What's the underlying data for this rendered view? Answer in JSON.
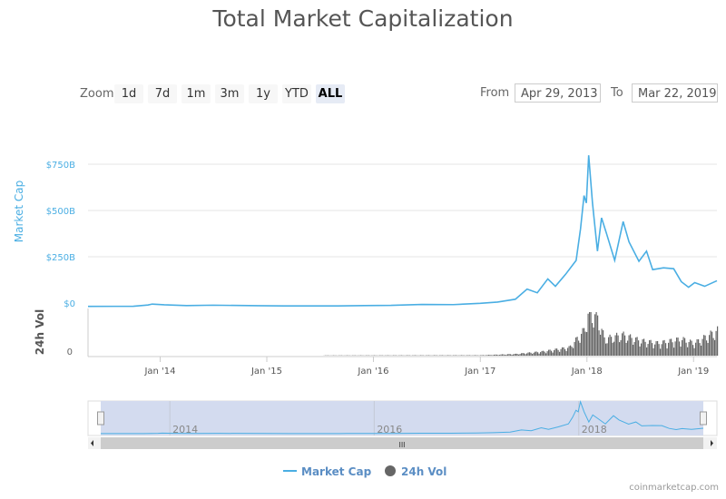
{
  "title": "Total Market Capitalization",
  "zoom": {
    "label": "Zoom",
    "buttons": [
      "1d",
      "7d",
      "1m",
      "3m",
      "1y",
      "YTD",
      "ALL"
    ],
    "selected": "ALL"
  },
  "range": {
    "from_label": "From",
    "from": "Apr 29, 2013",
    "to_label": "To",
    "to": "Mar 22, 2019"
  },
  "credit": "coinmarketcap.com",
  "colors": {
    "market_cap": "#4aaee3",
    "volume": "#666666",
    "navigator_mask": "#d3dbef"
  },
  "chart_data": {
    "type": "line",
    "title": "Total Market Capitalization",
    "ylabel": "Market Cap",
    "ylabel2": "24h Vol",
    "yticks": [
      "$0",
      "$250B",
      "$500B",
      "$750B"
    ],
    "ytick_values": [
      0,
      250,
      500,
      750
    ],
    "y2ticks": [
      "0"
    ],
    "xticks": [
      "Jan '14",
      "Jan '15",
      "Jan '16",
      "Jan '17",
      "Jan '18",
      "Jan '19"
    ],
    "navigator_ticks": [
      "2014",
      "2016",
      "2018"
    ],
    "xlim": [
      "2013-04-29",
      "2019-03-22"
    ],
    "ylim": [
      0,
      800
    ],
    "legend": {
      "position": "bottom",
      "entries": [
        "Market Cap",
        "24h Vol"
      ]
    },
    "grid": true,
    "series": [
      {
        "name": "Market Cap",
        "unit": "B USD",
        "points": [
          [
            "2013-04-29",
            1.5
          ],
          [
            "2013-10-01",
            2
          ],
          [
            "2013-11-20",
            9
          ],
          [
            "2013-12-05",
            14
          ],
          [
            "2014-01-15",
            10
          ],
          [
            "2014-04-01",
            6
          ],
          [
            "2014-07-01",
            8
          ],
          [
            "2014-12-01",
            5
          ],
          [
            "2015-03-01",
            4
          ],
          [
            "2015-09-01",
            4
          ],
          [
            "2015-12-01",
            6
          ],
          [
            "2016-03-01",
            7
          ],
          [
            "2016-06-15",
            12
          ],
          [
            "2016-10-01",
            11
          ],
          [
            "2017-01-01",
            18
          ],
          [
            "2017-03-01",
            25
          ],
          [
            "2017-05-01",
            40
          ],
          [
            "2017-06-10",
            95
          ],
          [
            "2017-07-15",
            75
          ],
          [
            "2017-08-20",
            150
          ],
          [
            "2017-09-15",
            110
          ],
          [
            "2017-10-20",
            175
          ],
          [
            "2017-11-25",
            250
          ],
          [
            "2017-12-10",
            420
          ],
          [
            "2017-12-22",
            600
          ],
          [
            "2017-12-30",
            560
          ],
          [
            "2018-01-07",
            818
          ],
          [
            "2018-01-20",
            560
          ],
          [
            "2018-02-06",
            300
          ],
          [
            "2018-02-20",
            480
          ],
          [
            "2018-03-10",
            390
          ],
          [
            "2018-04-06",
            250
          ],
          [
            "2018-05-05",
            460
          ],
          [
            "2018-05-25",
            350
          ],
          [
            "2018-06-28",
            245
          ],
          [
            "2018-07-24",
            300
          ],
          [
            "2018-08-14",
            200
          ],
          [
            "2018-09-20",
            210
          ],
          [
            "2018-10-25",
            205
          ],
          [
            "2018-11-20",
            135
          ],
          [
            "2018-12-15",
            105
          ],
          [
            "2019-01-05",
            130
          ],
          [
            "2019-02-08",
            110
          ],
          [
            "2019-03-22",
            140
          ]
        ]
      },
      {
        "name": "24h Vol",
        "unit": "B USD",
        "points": [
          [
            "2013-04-29",
            0
          ],
          [
            "2017-01-01",
            0.5
          ],
          [
            "2017-05-01",
            2
          ],
          [
            "2017-08-01",
            5
          ],
          [
            "2017-11-01",
            10
          ],
          [
            "2017-12-20",
            30
          ],
          [
            "2018-01-07",
            55
          ],
          [
            "2018-02-06",
            45
          ],
          [
            "2018-03-01",
            20
          ],
          [
            "2018-05-01",
            25
          ],
          [
            "2018-07-01",
            18
          ],
          [
            "2018-09-01",
            15
          ],
          [
            "2018-11-20",
            20
          ],
          [
            "2019-01-01",
            15
          ],
          [
            "2019-03-22",
            30
          ]
        ]
      }
    ]
  }
}
